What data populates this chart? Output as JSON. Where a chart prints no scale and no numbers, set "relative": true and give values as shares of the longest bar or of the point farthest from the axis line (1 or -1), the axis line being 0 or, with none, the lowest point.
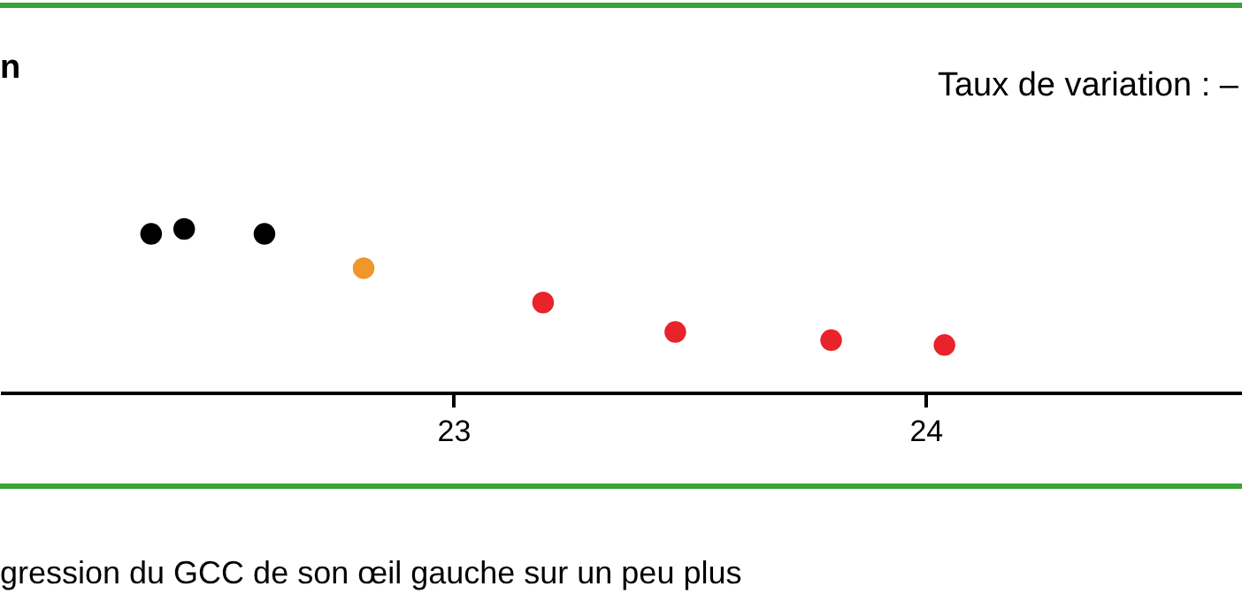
{
  "chart_data": {
    "type": "scatter",
    "relative": true,
    "marker": "circle",
    "grid": false,
    "xlim": [
      22.04,
      24.67
    ],
    "xticks": [
      23,
      24
    ],
    "series": [
      {
        "color": "#000000",
        "x": [
          22.36,
          22.43,
          22.6
        ],
        "values": [
          0.97,
          1,
          0.97
        ]
      },
      {
        "color": "#f0962a",
        "x": [
          22.81
        ],
        "values": [
          0.76
        ]
      },
      {
        "color": "#e8232a",
        "x": [
          23.19,
          23.47,
          23.8,
          24.04
        ],
        "values": [
          0.55,
          0.37,
          0.32,
          0.29
        ]
      }
    ],
    "annotations": [
      "n",
      "Taux de variation : –",
      "gression du GCC de son œil gauche sur un peu plus"
    ]
  }
}
